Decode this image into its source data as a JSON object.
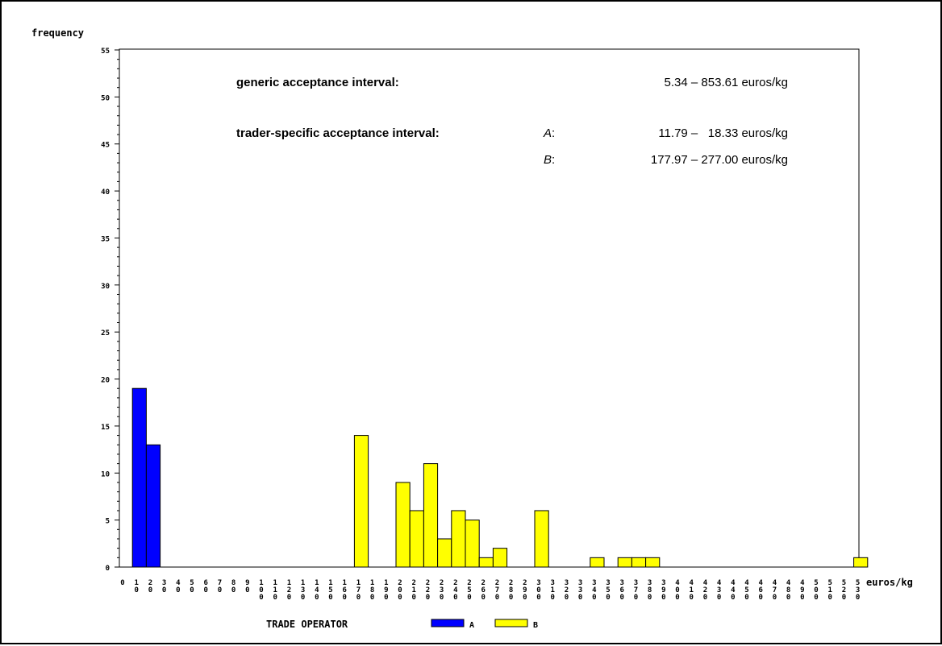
{
  "chart_data": {
    "type": "bar",
    "ylabel": "frequency",
    "xlabel": "euros/kg",
    "ylim": [
      0,
      55
    ],
    "y_ticks": [
      0,
      5,
      10,
      15,
      20,
      25,
      30,
      35,
      40,
      45,
      50,
      55
    ],
    "bin_width": 10,
    "bin_starts": [
      0,
      10,
      20,
      30,
      40,
      50,
      60,
      70,
      80,
      90,
      100,
      110,
      120,
      130,
      140,
      150,
      160,
      170,
      180,
      190,
      200,
      210,
      220,
      230,
      240,
      250,
      260,
      270,
      280,
      290,
      300,
      310,
      320,
      330,
      340,
      350,
      360,
      370,
      380,
      390,
      400,
      410,
      420,
      430,
      440,
      450,
      460,
      470,
      480,
      490,
      500,
      510,
      520,
      530
    ],
    "series": [
      {
        "name": "A",
        "color": "#0000ff",
        "bars": [
          {
            "x": 10,
            "value": 19
          },
          {
            "x": 20,
            "value": 13
          }
        ]
      },
      {
        "name": "B",
        "color": "#ffff00",
        "bars": [
          {
            "x": 170,
            "value": 14
          },
          {
            "x": 200,
            "value": 9
          },
          {
            "x": 210,
            "value": 6
          },
          {
            "x": 220,
            "value": 11
          },
          {
            "x": 230,
            "value": 3
          },
          {
            "x": 240,
            "value": 6
          },
          {
            "x": 250,
            "value": 5
          },
          {
            "x": 260,
            "value": 1
          },
          {
            "x": 270,
            "value": 2
          },
          {
            "x": 300,
            "value": 6
          },
          {
            "x": 340,
            "value": 1
          },
          {
            "x": 360,
            "value": 1
          },
          {
            "x": 370,
            "value": 1
          },
          {
            "x": 380,
            "value": 1
          },
          {
            "x": 530,
            "value": 1
          }
        ]
      }
    ],
    "legend": {
      "title": "TRADE OPERATOR",
      "placement": "bottom"
    },
    "annotations": {
      "generic_label": "generic acceptance interval:",
      "generic_value": "5.34 – 853.61 euros/kg",
      "specific_label": "trader-specific acceptance interval:",
      "a_label": "A",
      "a_value": "11.79 –   18.33 euros/kg",
      "b_label": "B",
      "b_value": "177.97 – 277.00 euros/kg"
    }
  }
}
